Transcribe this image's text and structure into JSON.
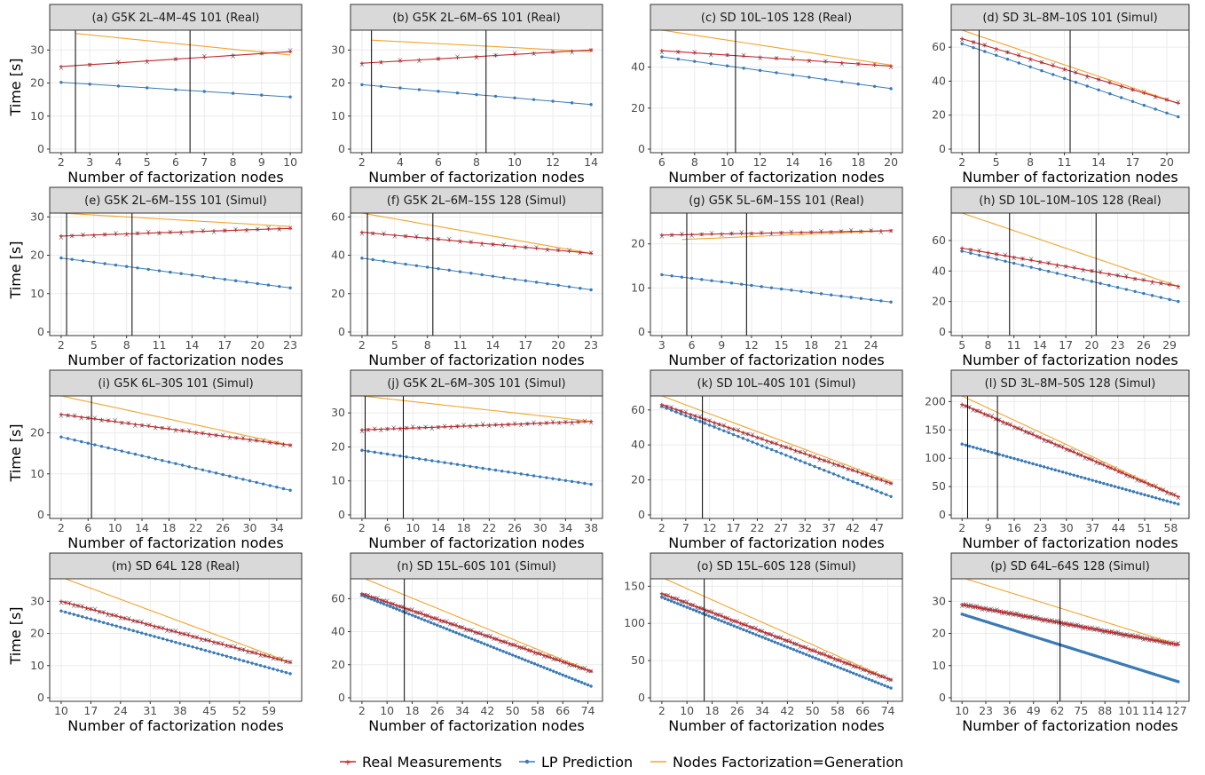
{
  "figure": {
    "y_axis_title": "Time [s]",
    "x_axis_title": "Number of factorization nodes"
  },
  "legend": {
    "position": "bottom",
    "items": [
      {
        "label": "Real Measurements",
        "color": "#c0282d",
        "marker": "cross"
      },
      {
        "label": "LP Prediction",
        "color": "#3a7ab5",
        "marker": "dot"
      },
      {
        "label": "Nodes Factorization=Generation",
        "color": "#f0a630",
        "marker": "line"
      }
    ]
  },
  "colors": {
    "real": "#c0282d",
    "lp": "#3a7ab5",
    "gen": "#f0a630",
    "samples": "#5f6b73",
    "strip": "#d9d9d9",
    "grid": "#ebebeb",
    "vline": "#000000"
  },
  "chart_data": [
    {
      "type": "line",
      "title": "(a) G5K 2L–4M–4S 101 (Real)",
      "x_range": [
        2,
        10
      ],
      "ylim": [
        0,
        36
      ],
      "xticks": [
        2,
        3,
        4,
        5,
        6,
        7,
        8,
        9,
        10
      ],
      "yticks": [
        0,
        10,
        20,
        30
      ],
      "vlines": [
        2.5,
        6.5
      ],
      "series": [
        {
          "name": "Real Measurements",
          "x": [
            2,
            10
          ],
          "y": [
            25,
            29.5
          ]
        },
        {
          "name": "LP Prediction",
          "x": [
            2,
            10
          ],
          "y": [
            20.2,
            15.8
          ]
        },
        {
          "name": "Nodes Factorization=Generation",
          "x": [
            2.5,
            10
          ],
          "y": [
            35,
            28.5
          ]
        }
      ]
    },
    {
      "type": "line",
      "title": "(b) G5K 2L–6M–6S 101 (Real)",
      "x_range": [
        2,
        14
      ],
      "ylim": [
        0,
        36
      ],
      "xticks": [
        2,
        4,
        6,
        8,
        10,
        12,
        14
      ],
      "yticks": [
        0,
        10,
        20,
        30
      ],
      "vlines": [
        2.5,
        8.5
      ],
      "series": [
        {
          "name": "Real Measurements",
          "x": [
            2,
            14
          ],
          "y": [
            26,
            30
          ]
        },
        {
          "name": "LP Prediction",
          "x": [
            2,
            14
          ],
          "y": [
            19.5,
            13.5
          ]
        },
        {
          "name": "Nodes Factorization=Generation",
          "x": [
            2.5,
            14
          ],
          "y": [
            33,
            29.5
          ]
        }
      ]
    },
    {
      "type": "line",
      "title": "(c) SD 10L–10S 128 (Real)",
      "x_range": [
        6,
        20
      ],
      "ylim": [
        0,
        58
      ],
      "xticks": [
        6,
        8,
        10,
        12,
        14,
        16,
        18,
        20
      ],
      "yticks": [
        0,
        20,
        40
      ],
      "vlines": [
        10.5
      ],
      "series": [
        {
          "name": "Real Measurements",
          "x": [
            6,
            20
          ],
          "y": [
            48,
            40.5
          ]
        },
        {
          "name": "LP Prediction",
          "x": [
            6,
            20
          ],
          "y": [
            45,
            29.5
          ]
        },
        {
          "name": "Nodes Factorization=Generation",
          "x": [
            6,
            20
          ],
          "y": [
            58,
            41
          ]
        }
      ]
    },
    {
      "type": "line",
      "title": "(d) SD 3L–8M–10S 101 (Simul)",
      "x_range": [
        2,
        21
      ],
      "ylim": [
        0,
        70
      ],
      "xticks": [
        2,
        5,
        8,
        11,
        14,
        17,
        20
      ],
      "yticks": [
        0,
        20,
        40,
        60
      ],
      "vlines": [
        3.5,
        11.5
      ],
      "series": [
        {
          "name": "Real Measurements",
          "x": [
            2,
            21
          ],
          "y": [
            65,
            27
          ]
        },
        {
          "name": "LP Prediction",
          "x": [
            2,
            21
          ],
          "y": [
            62,
            19
          ]
        },
        {
          "name": "Nodes Factorization=Generation",
          "x": [
            2,
            21
          ],
          "y": [
            70,
            27
          ]
        }
      ]
    },
    {
      "type": "line",
      "title": "(e) G5K 2L–6M–15S 101 (Simul)",
      "x_range": [
        2,
        23
      ],
      "ylim": [
        0,
        31
      ],
      "xticks": [
        2,
        5,
        8,
        11,
        14,
        17,
        20,
        23
      ],
      "yticks": [
        0,
        10,
        20,
        30
      ],
      "vlines": [
        2.5,
        8.5
      ],
      "series": [
        {
          "name": "Real Measurements",
          "x": [
            2,
            23
          ],
          "y": [
            25,
            27
          ]
        },
        {
          "name": "LP Prediction",
          "x": [
            2,
            23
          ],
          "y": [
            19.3,
            11.5
          ]
        },
        {
          "name": "Nodes Factorization=Generation",
          "x": [
            2,
            23
          ],
          "y": [
            31,
            27.5
          ]
        }
      ]
    },
    {
      "type": "line",
      "title": "(f) G5K 2L–6M–15S 128 (Simul)",
      "x_range": [
        2,
        23
      ],
      "ylim": [
        0,
        62
      ],
      "xticks": [
        2,
        5,
        8,
        11,
        14,
        17,
        20,
        23
      ],
      "yticks": [
        0,
        20,
        40,
        60
      ],
      "vlines": [
        2.5,
        8.5
      ],
      "series": [
        {
          "name": "Real Measurements",
          "x": [
            2,
            23
          ],
          "y": [
            52,
            41
          ]
        },
        {
          "name": "LP Prediction",
          "x": [
            2,
            23
          ],
          "y": [
            38.5,
            22
          ]
        },
        {
          "name": "Nodes Factorization=Generation",
          "x": [
            2,
            23
          ],
          "y": [
            62,
            41
          ]
        }
      ]
    },
    {
      "type": "line",
      "title": "(g) G5K 5L–6M–15S 101 (Real)",
      "x_range": [
        3,
        26
      ],
      "ylim": [
        0,
        27
      ],
      "xticks": [
        3,
        6,
        9,
        12,
        15,
        18,
        21,
        24
      ],
      "yticks": [
        0,
        10,
        20
      ],
      "vlines": [
        5.5,
        11.5
      ],
      "series": [
        {
          "name": "Real Measurements",
          "x": [
            3,
            26
          ],
          "y": [
            22,
            23
          ]
        },
        {
          "name": "LP Prediction",
          "x": [
            3,
            26
          ],
          "y": [
            13,
            6.8
          ]
        },
        {
          "name": "Nodes Factorization=Generation",
          "x": [
            5,
            26
          ],
          "y": [
            21,
            23
          ]
        }
      ]
    },
    {
      "type": "line",
      "title": "(h) SD 10L–10M–10S 128 (Real)",
      "x_range": [
        5,
        30
      ],
      "ylim": [
        0,
        78
      ],
      "xticks": [
        5,
        8,
        11,
        14,
        17,
        20,
        23,
        26,
        29
      ],
      "yticks": [
        0,
        20,
        40,
        60
      ],
      "vlines": [
        10.5,
        20.5
      ],
      "series": [
        {
          "name": "Real Measurements",
          "x": [
            5,
            30
          ],
          "y": [
            55,
            30
          ]
        },
        {
          "name": "LP Prediction",
          "x": [
            5,
            30
          ],
          "y": [
            53,
            20
          ]
        },
        {
          "name": "Nodes Factorization=Generation",
          "x": [
            5,
            30
          ],
          "y": [
            78,
            30
          ]
        }
      ]
    },
    {
      "type": "line",
      "title": "(i) G5K 6L–30S 101 (Simul)",
      "x_range": [
        2,
        36
      ],
      "ylim": [
        0,
        29
      ],
      "xticks": [
        2,
        6,
        10,
        14,
        18,
        22,
        26,
        30,
        34
      ],
      "yticks": [
        0,
        10,
        20
      ],
      "vlines": [
        6.5
      ],
      "series": [
        {
          "name": "Real Measurements",
          "x": [
            2,
            36
          ],
          "y": [
            24.5,
            17
          ]
        },
        {
          "name": "LP Prediction",
          "x": [
            2,
            36
          ],
          "y": [
            19,
            6
          ]
        },
        {
          "name": "Nodes Factorization=Generation",
          "x": [
            2,
            36
          ],
          "y": [
            29,
            17
          ]
        }
      ]
    },
    {
      "type": "line",
      "title": "(j) G5K 2L–6M–30S 101 (Simul)",
      "x_range": [
        2,
        38
      ],
      "ylim": [
        0,
        35
      ],
      "xticks": [
        2,
        6,
        10,
        14,
        18,
        22,
        26,
        30,
        34,
        38
      ],
      "yticks": [
        0,
        10,
        20,
        30
      ],
      "vlines": [
        2.5,
        8.5
      ],
      "series": [
        {
          "name": "Real Measurements",
          "x": [
            2,
            38
          ],
          "y": [
            25,
            27.5
          ]
        },
        {
          "name": "LP Prediction",
          "x": [
            2,
            38
          ],
          "y": [
            19,
            9
          ]
        },
        {
          "name": "Nodes Factorization=Generation",
          "x": [
            2,
            38
          ],
          "y": [
            35,
            27.5
          ]
        }
      ]
    },
    {
      "type": "line",
      "title": "(k) SD 10L–40S 101 (Simul)",
      "x_range": [
        2,
        50
      ],
      "ylim": [
        0,
        68
      ],
      "xticks": [
        2,
        7,
        12,
        17,
        22,
        27,
        32,
        37,
        42,
        47
      ],
      "yticks": [
        0,
        20,
        40,
        60
      ],
      "vlines": [
        10.5
      ],
      "series": [
        {
          "name": "Real Measurements",
          "x": [
            2,
            50
          ],
          "y": [
            63,
            18
          ]
        },
        {
          "name": "LP Prediction",
          "x": [
            2,
            50
          ],
          "y": [
            62,
            10.5
          ]
        },
        {
          "name": "Nodes Factorization=Generation",
          "x": [
            2,
            50
          ],
          "y": [
            68,
            19
          ]
        }
      ]
    },
    {
      "type": "line",
      "title": "(l) SD 3L–8M–50S 128 (Simul)",
      "x_range": [
        2,
        60
      ],
      "ylim": [
        0,
        210
      ],
      "xticks": [
        2,
        9,
        16,
        23,
        30,
        37,
        44,
        51,
        58
      ],
      "yticks": [
        0,
        50,
        100,
        150,
        200
      ],
      "vlines": [
        3.5,
        11.5
      ],
      "series": [
        {
          "name": "Real Measurements",
          "x": [
            2,
            60
          ],
          "y": [
            195,
            32
          ]
        },
        {
          "name": "LP Prediction",
          "x": [
            2,
            60
          ],
          "y": [
            125,
            19
          ]
        },
        {
          "name": "Nodes Factorization=Generation",
          "x": [
            2,
            60
          ],
          "y": [
            210,
            32
          ]
        }
      ]
    },
    {
      "type": "line",
      "title": "(m) SD 64L 128 (Real)",
      "x_range": [
        10,
        64
      ],
      "ylim": [
        0,
        37
      ],
      "xticks": [
        10,
        17,
        24,
        31,
        38,
        45,
        52,
        59
      ],
      "yticks": [
        0,
        10,
        20,
        30
      ],
      "vlines": [],
      "series": [
        {
          "name": "Real Measurements",
          "x": [
            10,
            64
          ],
          "y": [
            30,
            11
          ]
        },
        {
          "name": "LP Prediction",
          "x": [
            10,
            64
          ],
          "y": [
            27,
            7.5
          ]
        },
        {
          "name": "Nodes Factorization=Generation",
          "x": [
            11,
            64
          ],
          "y": [
            37,
            11
          ]
        }
      ]
    },
    {
      "type": "line",
      "title": "(n) SD 15L–60S 101 (Simul)",
      "x_range": [
        2,
        75
      ],
      "ylim": [
        0,
        72
      ],
      "xticks": [
        2,
        10,
        18,
        26,
        34,
        42,
        50,
        58,
        66,
        74
      ],
      "yticks": [
        0,
        20,
        40,
        60
      ],
      "vlines": [
        15.5
      ],
      "series": [
        {
          "name": "Real Measurements",
          "x": [
            2,
            75
          ],
          "y": [
            63,
            16
          ]
        },
        {
          "name": "LP Prediction",
          "x": [
            2,
            75
          ],
          "y": [
            62,
            7
          ]
        },
        {
          "name": "Nodes Factorization=Generation",
          "x": [
            3,
            75
          ],
          "y": [
            72,
            16
          ]
        }
      ]
    },
    {
      "type": "line",
      "title": "(o) SD 15L–60S 128 (Simul)",
      "x_range": [
        2,
        75
      ],
      "ylim": [
        0,
        160
      ],
      "xticks": [
        2,
        10,
        18,
        26,
        34,
        42,
        50,
        58,
        66,
        74
      ],
      "yticks": [
        0,
        50,
        100,
        150
      ],
      "vlines": [
        15.5
      ],
      "series": [
        {
          "name": "Real Measurements",
          "x": [
            2,
            75
          ],
          "y": [
            140,
            24
          ]
        },
        {
          "name": "LP Prediction",
          "x": [
            2,
            75
          ],
          "y": [
            135,
            13
          ]
        },
        {
          "name": "Nodes Factorization=Generation",
          "x": [
            3,
            75
          ],
          "y": [
            160,
            24
          ]
        }
      ]
    },
    {
      "type": "line",
      "title": "(p) SD 64L–64S 128 (Simul)",
      "x_range": [
        10,
        128
      ],
      "ylim": [
        0,
        37
      ],
      "xticks": [
        10,
        23,
        36,
        49,
        62,
        75,
        88,
        101,
        114,
        127
      ],
      "yticks": [
        0,
        10,
        20,
        30
      ],
      "vlines": [
        63.5
      ],
      "series": [
        {
          "name": "Real Measurements",
          "x": [
            10,
            128
          ],
          "y": [
            29,
            16.5
          ]
        },
        {
          "name": "LP Prediction",
          "x": [
            10,
            128
          ],
          "y": [
            26,
            5
          ]
        },
        {
          "name": "Nodes Factorization=Generation",
          "x": [
            12,
            128
          ],
          "y": [
            37,
            16.5
          ]
        }
      ]
    }
  ]
}
